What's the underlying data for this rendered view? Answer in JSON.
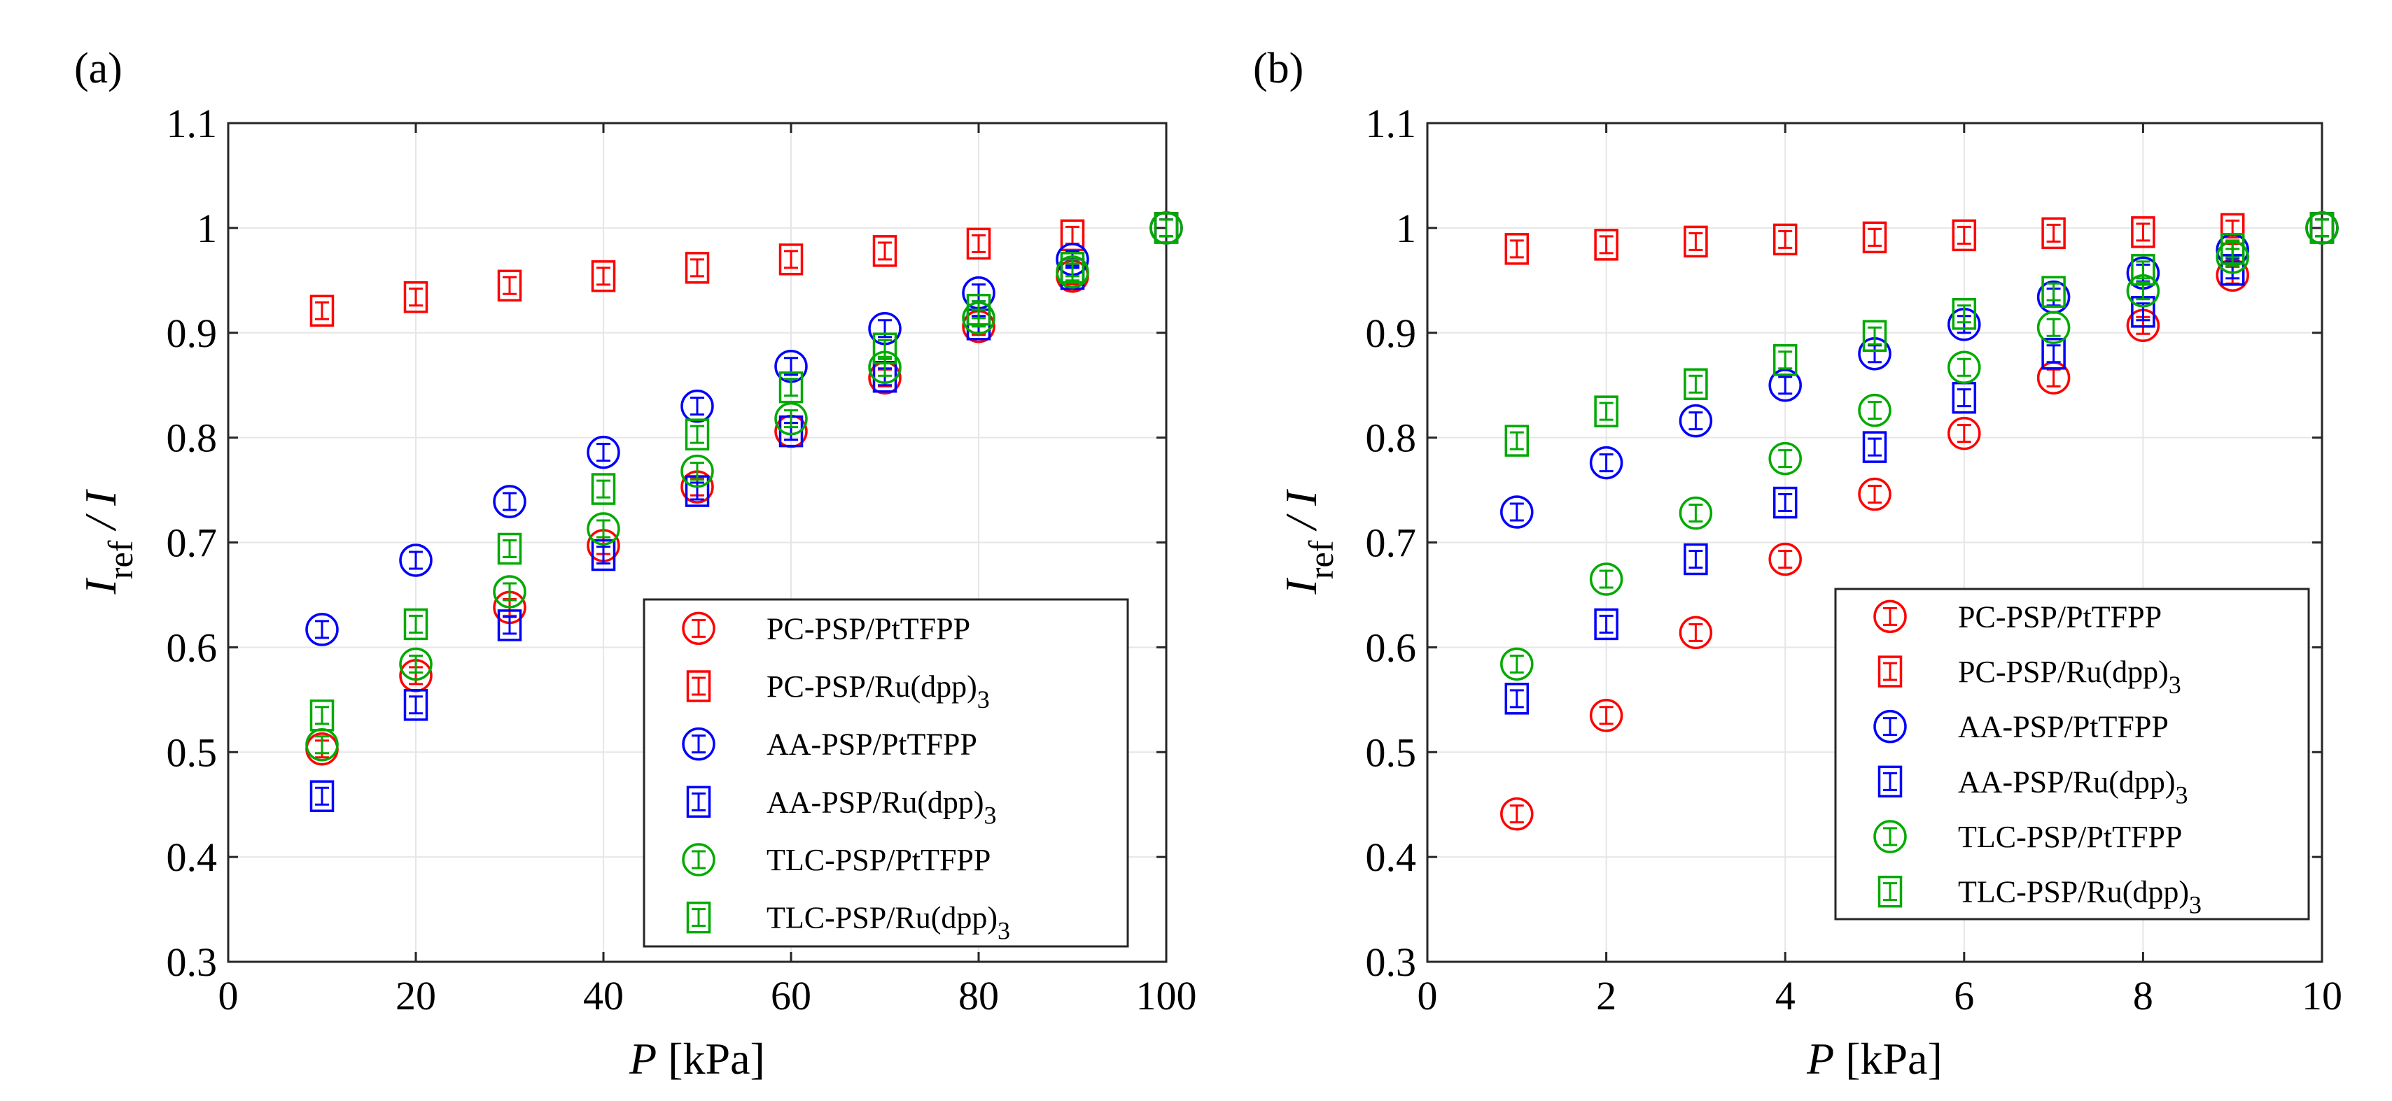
{
  "chart_data": [
    {
      "type": "scatter",
      "panel_label": "(a)",
      "xlabel_var": "P",
      "xlabel_unit": "[kPa]",
      "ylabel": {
        "base": "I",
        "sub": "ref",
        "rest": "/ I"
      },
      "xlim": [
        0,
        100
      ],
      "ylim": [
        0.3,
        1.1
      ],
      "xticks": [
        "0",
        "20",
        "40",
        "60",
        "80",
        "100"
      ],
      "xtick_values": [
        0,
        20,
        40,
        60,
        80,
        100
      ],
      "yticks": [
        "0.3",
        "0.4",
        "0.5",
        "0.6",
        "0.7",
        "0.8",
        "0.9",
        "1"
      ],
      "ytick_values": [
        0.3,
        0.4,
        0.5,
        0.6,
        0.7,
        0.8,
        0.9,
        1.0
      ],
      "ytick_extra": {
        "label": "1.1",
        "value": 1.1
      },
      "grid": true,
      "legend_position": "bottom-right",
      "x": [
        10,
        20,
        30,
        40,
        50,
        60,
        70,
        80,
        90,
        100
      ],
      "series": [
        {
          "name": "PC-PSP/PtTFPP",
          "label_main": "PC-PSP/PtTFPP",
          "label_sub": "",
          "marker": "circle",
          "color": "#ff0000",
          "values": [
            0.503,
            0.573,
            0.638,
            0.697,
            0.753,
            0.806,
            0.857,
            0.906,
            0.954,
            1.0
          ]
        },
        {
          "name": "PC-PSP/Ru(dpp)3",
          "label_main": "PC-PSP/Ru(dpp)",
          "label_sub": "3",
          "marker": "square",
          "color": "#ff0000",
          "values": [
            0.921,
            0.934,
            0.945,
            0.954,
            0.962,
            0.97,
            0.978,
            0.985,
            0.993,
            1.0
          ]
        },
        {
          "name": "AA-PSP/PtTFPP",
          "label_main": "AA-PSP/PtTFPP",
          "label_sub": "",
          "marker": "circle",
          "color": "#0000ff",
          "values": [
            0.617,
            0.683,
            0.739,
            0.786,
            0.83,
            0.868,
            0.904,
            0.938,
            0.97,
            1.0
          ]
        },
        {
          "name": "AA-PSP/Ru(dpp)3",
          "label_main": "AA-PSP/Ru(dpp)",
          "label_sub": "3",
          "marker": "square",
          "color": "#0000ff",
          "values": [
            0.458,
            0.545,
            0.621,
            0.688,
            0.749,
            0.806,
            0.858,
            0.908,
            0.956,
            1.0
          ]
        },
        {
          "name": "TLC-PSP/PtTFPP",
          "label_main": "TLC-PSP/PtTFPP",
          "label_sub": "",
          "marker": "circle",
          "color": "#00aa00",
          "values": [
            0.507,
            0.584,
            0.653,
            0.713,
            0.768,
            0.818,
            0.867,
            0.914,
            0.958,
            1.0
          ]
        },
        {
          "name": "TLC-PSP/Ru(dpp)3",
          "label_main": "TLC-PSP/Ru(dpp)",
          "label_sub": "3",
          "marker": "square",
          "color": "#00aa00",
          "values": [
            0.535,
            0.622,
            0.694,
            0.751,
            0.803,
            0.848,
            0.885,
            0.922,
            0.962,
            1.0
          ]
        }
      ]
    },
    {
      "type": "scatter",
      "panel_label": "(b)",
      "xlabel_var": "P",
      "xlabel_unit": "[kPa]",
      "ylabel": {
        "base": "I",
        "sub": "ref",
        "rest": "/ I"
      },
      "xlim": [
        0,
        10
      ],
      "ylim": [
        0.3,
        1.1
      ],
      "xticks": [
        "0",
        "2",
        "4",
        "6",
        "8",
        "10"
      ],
      "xtick_values": [
        0,
        2,
        4,
        6,
        8,
        10
      ],
      "yticks": [
        "0.3",
        "0.4",
        "0.5",
        "0.6",
        "0.7",
        "0.8",
        "0.9",
        "1"
      ],
      "ytick_values": [
        0.3,
        0.4,
        0.5,
        0.6,
        0.7,
        0.8,
        0.9,
        1.0
      ],
      "ytick_extra": {
        "label": "1.1",
        "value": 1.1
      },
      "grid": true,
      "legend_position": "bottom-right",
      "x": [
        1,
        2,
        3,
        4,
        5,
        6,
        7,
        8,
        9,
        10
      ],
      "series": [
        {
          "name": "PC-PSP/PtTFPP",
          "label_main": "PC-PSP/PtTFPP",
          "label_sub": "",
          "marker": "circle",
          "color": "#ff0000",
          "values": [
            0.441,
            0.535,
            0.614,
            0.684,
            0.746,
            0.804,
            0.857,
            0.907,
            0.955,
            1.0
          ]
        },
        {
          "name": "PC-PSP/Ru(dpp)3",
          "label_main": "PC-PSP/Ru(dpp)",
          "label_sub": "3",
          "marker": "square",
          "color": "#ff0000",
          "values": [
            0.98,
            0.984,
            0.987,
            0.989,
            0.991,
            0.993,
            0.995,
            0.996,
            0.999,
            1.0
          ]
        },
        {
          "name": "AA-PSP/PtTFPP",
          "label_main": "AA-PSP/PtTFPP",
          "label_sub": "",
          "marker": "circle",
          "color": "#0000ff",
          "values": [
            0.729,
            0.776,
            0.816,
            0.85,
            0.88,
            0.908,
            0.934,
            0.957,
            0.979,
            1.0
          ]
        },
        {
          "name": "AA-PSP/Ru(dpp)3",
          "label_main": "AA-PSP/Ru(dpp)",
          "label_sub": "3",
          "marker": "square",
          "color": "#0000ff",
          "values": [
            0.551,
            0.622,
            0.684,
            0.738,
            0.791,
            0.838,
            0.88,
            0.92,
            0.96,
            1.0
          ]
        },
        {
          "name": "TLC-PSP/PtTFPP",
          "label_main": "TLC-PSP/PtTFPP",
          "label_sub": "",
          "marker": "circle",
          "color": "#00aa00",
          "values": [
            0.584,
            0.665,
            0.728,
            0.78,
            0.826,
            0.867,
            0.905,
            0.94,
            0.972,
            1.0
          ]
        },
        {
          "name": "TLC-PSP/Ru(dpp)3",
          "label_main": "TLC-PSP/Ru(dpp)",
          "label_sub": "3",
          "marker": "square",
          "color": "#00aa00",
          "values": [
            0.797,
            0.825,
            0.851,
            0.874,
            0.897,
            0.918,
            0.939,
            0.96,
            0.98,
            1.0
          ]
        }
      ]
    }
  ]
}
